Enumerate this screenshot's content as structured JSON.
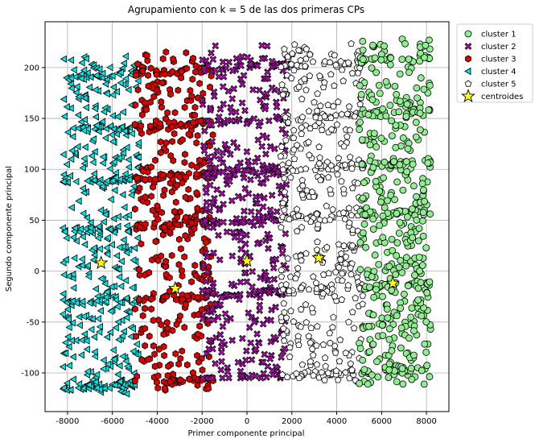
{
  "chart_data": {
    "type": "scatter",
    "title": "Agrupamiento con k = 5 de las dos primeras CPs",
    "xlabel": "Primer componente principal",
    "ylabel": "Segundo componente principal",
    "xlim": [
      -9000,
      9000
    ],
    "ylim": [
      -138,
      245
    ],
    "xticks": [
      -8000,
      -6000,
      -4000,
      -2000,
      0,
      2000,
      4000,
      6000,
      8000
    ],
    "yticks": [
      -100,
      -50,
      0,
      50,
      100,
      150,
      200
    ],
    "grid": true,
    "legend": "outside-upper-right",
    "series": [
      {
        "name": "cluster 1",
        "marker": "circle",
        "color": "#90ee90",
        "x_range": [
          5000,
          8200
        ],
        "y_range": [
          -112,
          228
        ]
      },
      {
        "name": "cluster 2",
        "marker": "x",
        "color": "#cc00cc",
        "x_range": [
          -2000,
          1800
        ],
        "y_range": [
          -105,
          222
        ]
      },
      {
        "name": "cluster 3",
        "marker": "hexagon",
        "color": "#dd0000",
        "x_range": [
          -5000,
          -1500
        ],
        "y_range": [
          -117,
          216
        ]
      },
      {
        "name": "cluster 4",
        "marker": "triangle-left",
        "color": "#00e5e5",
        "x_range": [
          -8200,
          -4800
        ],
        "y_range": [
          -122,
          212
        ]
      },
      {
        "name": "cluster 5",
        "marker": "pentagon",
        "color": "#ffffff",
        "x_range": [
          1500,
          5200
        ],
        "y_range": [
          -110,
          225
        ]
      }
    ],
    "centroids": {
      "name": "centroides",
      "marker": "star",
      "color": "#ffff00",
      "points": [
        {
          "x": 6500,
          "y": -12
        },
        {
          "x": 0,
          "y": 10
        },
        {
          "x": -3200,
          "y": -17
        },
        {
          "x": -6500,
          "y": 8
        },
        {
          "x": 3200,
          "y": 13
        }
      ]
    }
  }
}
